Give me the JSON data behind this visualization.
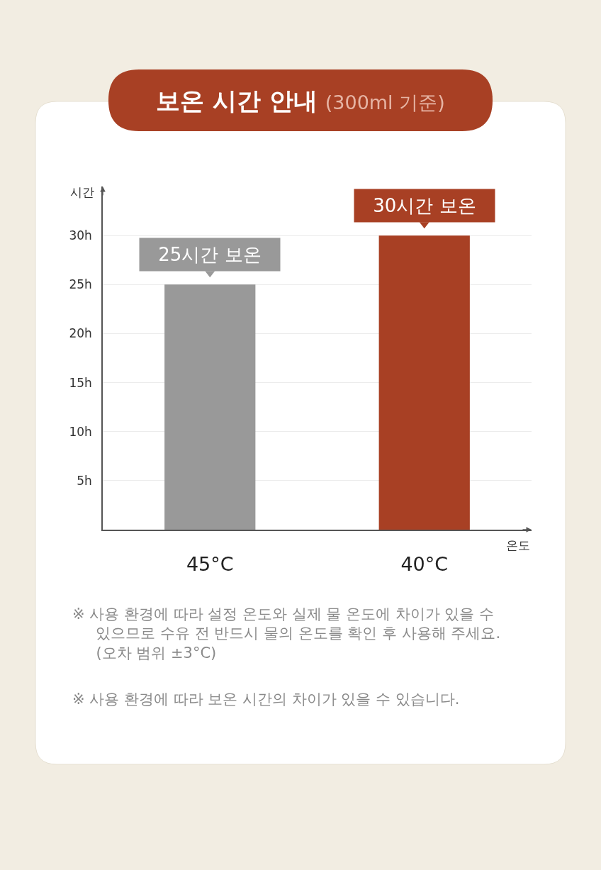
{
  "chart_data": {
    "type": "bar",
    "title": "보온 시간 안내",
    "subtitle": "(300ml 기준)",
    "xlabel": "온도",
    "ylabel": "시간",
    "categories": [
      "45°C",
      "40°C"
    ],
    "values": [
      25,
      30
    ],
    "colors": [
      "#999999",
      "#a84024"
    ],
    "value_labels": [
      "25시간 보온",
      "30시간 보온"
    ],
    "ylim": [
      0,
      35
    ],
    "yticks": [
      {
        "value": 5,
        "label": "5h"
      },
      {
        "value": 10,
        "label": "10h"
      },
      {
        "value": 15,
        "label": "15h"
      },
      {
        "value": 20,
        "label": "20h"
      },
      {
        "value": 25,
        "label": "25h"
      },
      {
        "value": 30,
        "label": "30h"
      }
    ],
    "grid": "y",
    "annotations": [
      "※ 사용 환경에 따라 설정 온도와 실제 물 온도에 차이가 있을 수\n있으므로 수유 전 반드시 물의 온도를 확인 후 사용해 주세요.\n(오차 범위 ±3°C)",
      "※ 사용 환경에 따라 보온 시간의 차이가 있을 수 있습니다."
    ]
  }
}
